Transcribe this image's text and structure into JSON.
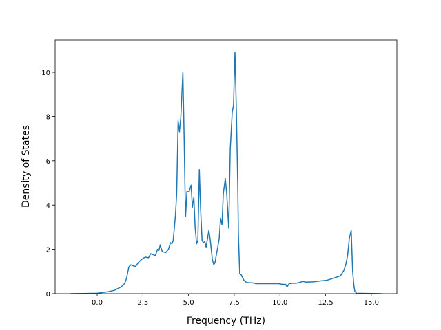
{
  "chart_data": {
    "type": "line",
    "xlabel": "Frequency (THz)",
    "ylabel": "Density of States",
    "x": [
      -1.45,
      0,
      0.56,
      0.94,
      1.31,
      1.5,
      1.61,
      1.73,
      1.84,
      1.99,
      2.1,
      2.25,
      2.44,
      2.63,
      2.81,
      2.93,
      3.08,
      3.19,
      3.3,
      3.38,
      3.45,
      3.56,
      3.75,
      3.9,
      4.01,
      4.09,
      4.16,
      4.28,
      4.35,
      4.43,
      4.5,
      4.58,
      4.69,
      4.76,
      4.8,
      4.84,
      4.91,
      5.03,
      5.14,
      5.21,
      5.29,
      5.36,
      5.44,
      5.51,
      5.59,
      5.66,
      5.74,
      5.81,
      5.89,
      5.96,
      6.04,
      6.11,
      6.19,
      6.3,
      6.38,
      6.45,
      6.53,
      6.6,
      6.68,
      6.75,
      6.83,
      6.9,
      7.01,
      7.09,
      7.2,
      7.28,
      7.39,
      7.46,
      7.54,
      7.61,
      7.69,
      7.73,
      7.8,
      7.88,
      8.03,
      8.18,
      8.55,
      8.7,
      9.75,
      9.94,
      10.13,
      10.31,
      10.39,
      10.5,
      10.69,
      10.88,
      11.06,
      11.25,
      11.44,
      11.81,
      12.19,
      12.56,
      12.94,
      13.31,
      13.5,
      13.6,
      13.7,
      13.8,
      13.9,
      13.98,
      14.05,
      14.1,
      14.2,
      15.55
    ],
    "values": [
      0,
      0.02,
      0.08,
      0.15,
      0.3,
      0.45,
      0.7,
      1.2,
      1.3,
      1.25,
      1.22,
      1.4,
      1.55,
      1.65,
      1.62,
      1.8,
      1.75,
      1.72,
      2.0,
      1.95,
      2.2,
      1.9,
      1.85,
      2.0,
      2.3,
      2.25,
      2.4,
      3.5,
      4.5,
      7.8,
      7.3,
      8.0,
      10.0,
      7.0,
      5.0,
      3.5,
      4.6,
      4.6,
      4.9,
      3.9,
      4.35,
      3.0,
      2.25,
      2.4,
      5.6,
      3.8,
      2.4,
      2.3,
      2.35,
      2.1,
      2.5,
      2.85,
      2.4,
      1.55,
      1.3,
      1.4,
      1.8,
      2.1,
      2.5,
      3.4,
      3.1,
      4.5,
      5.2,
      4.5,
      2.95,
      6.5,
      8.2,
      8.5,
      10.9,
      8.5,
      5.0,
      2.6,
      0.9,
      0.85,
      0.6,
      0.5,
      0.48,
      0.45,
      0.45,
      0.45,
      0.42,
      0.42,
      0.3,
      0.45,
      0.47,
      0.47,
      0.5,
      0.55,
      0.52,
      0.53,
      0.57,
      0.6,
      0.7,
      0.8,
      1.05,
      1.3,
      1.7,
      2.5,
      2.85,
      1.0,
      0.35,
      0.1,
      0.02,
      0
    ],
    "color": "#1f77b4",
    "xlim": [
      -2.3,
      16.4
    ],
    "xticks": [
      {
        "value": 0,
        "label": "0.0"
      },
      {
        "value": 2.5,
        "label": "2.5"
      },
      {
        "value": 5,
        "label": "5.0"
      },
      {
        "value": 7.5,
        "label": "7.5"
      },
      {
        "value": 10,
        "label": "10.0"
      },
      {
        "value": 12.5,
        "label": "12.5"
      },
      {
        "value": 15,
        "label": "15.0"
      }
    ],
    "ylim": [
      0,
      11.46
    ],
    "yticks": [
      0,
      2,
      4,
      6,
      8,
      10
    ]
  }
}
